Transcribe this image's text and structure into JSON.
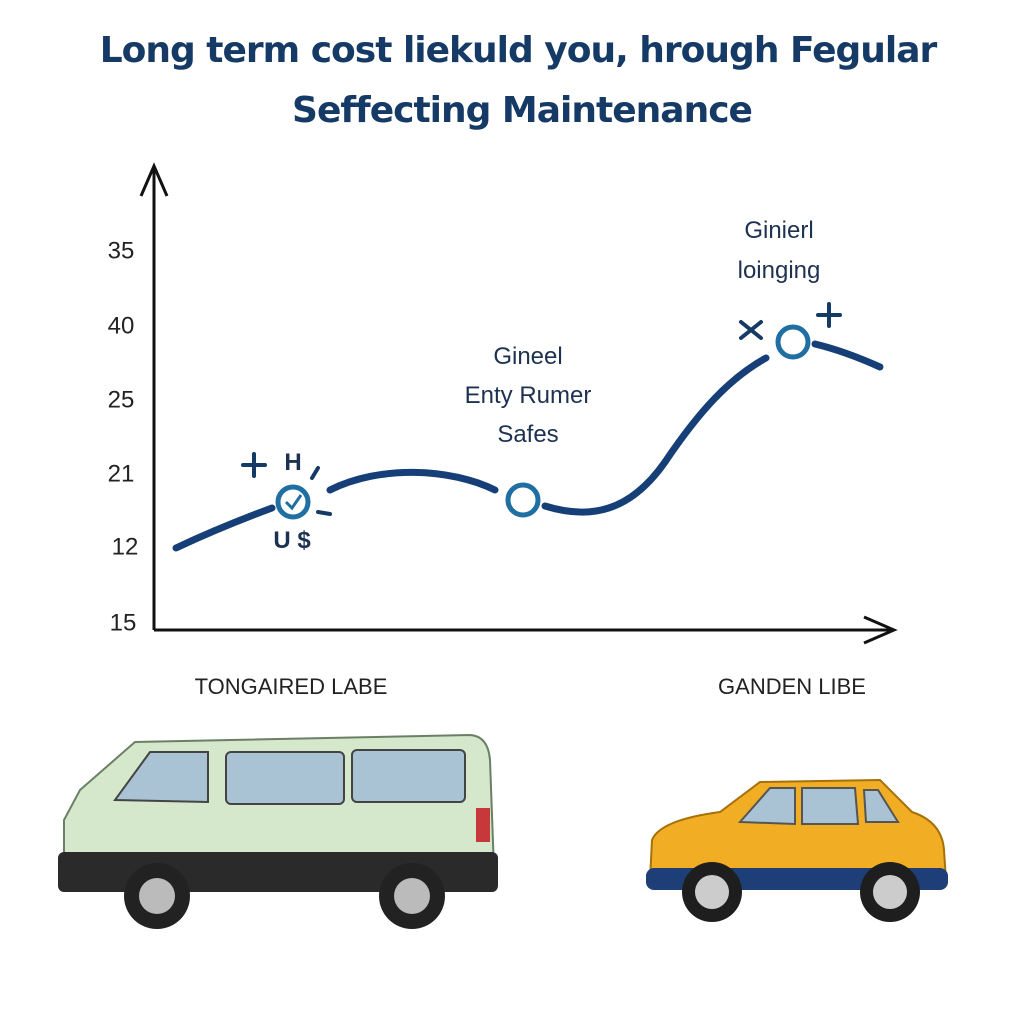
{
  "title": {
    "line1": "Long term cost liekuld you, hrough Fegular",
    "line2": "Seffecting Maintenance"
  },
  "y_axis_labels": [
    "35",
    "40",
    "25",
    "21",
    "12",
    "15"
  ],
  "annotations": {
    "first_point": {
      "top": "H",
      "bottom": "U $"
    },
    "middle_point": [
      "Gineel",
      "Enty Rumer",
      "Safes"
    ],
    "last_point": [
      "Ginierl",
      "loinging"
    ]
  },
  "vehicles": {
    "left_label": "TONGAIRED LABE",
    "right_label": "GANDEN LIBE"
  }
}
